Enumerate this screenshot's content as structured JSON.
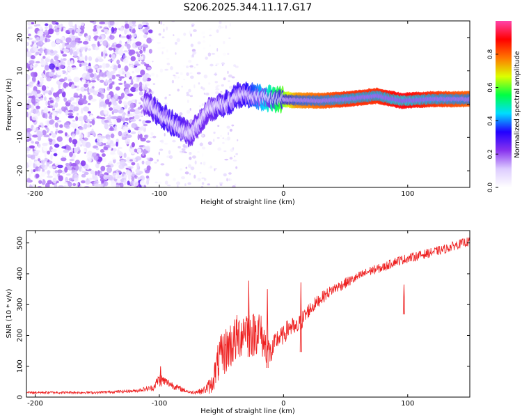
{
  "figure": {
    "title": "S206.2025.344.11.17.G17"
  },
  "chart_data": [
    {
      "type": "heatmap",
      "title": "S206.2025.344.11.17.G17",
      "xlabel": "Height of straight line (km)",
      "ylabel": "Frequency (Hz)",
      "xlim": [
        -207,
        150
      ],
      "ylim": [
        -25,
        25
      ],
      "xticks": [
        -200,
        -100,
        0,
        100
      ],
      "yticks": [
        -20,
        -10,
        0,
        10,
        20
      ],
      "xtick_labels": [
        "-200",
        "-100",
        "0",
        "100"
      ],
      "ytick_labels": [
        "-20",
        "-10",
        "0",
        "10",
        "20"
      ],
      "colorbar": {
        "label": "Normalized spectral amplitude",
        "range": [
          0,
          1
        ],
        "ticks": [
          0.0,
          0.2,
          0.4,
          0.6,
          0.8
        ],
        "tick_labels": [
          "0.0",
          "0.2",
          "0.4",
          "0.6",
          "0.8"
        ],
        "colors": [
          "#ffffff",
          "#ddccff",
          "#8833ee",
          "#2200ff",
          "#00ddff",
          "#00ff44",
          "#ddff00",
          "#ff7700",
          "#ff0000",
          "#ff44aa"
        ]
      },
      "ridge": [
        {
          "x": -110,
          "y": 0.5,
          "amp": 0.25
        },
        {
          "x": -100,
          "y": -3,
          "amp": 0.3
        },
        {
          "x": -88,
          "y": -6,
          "amp": 0.3
        },
        {
          "x": -75,
          "y": -9,
          "amp": 0.25
        },
        {
          "x": -60,
          "y": -1.5,
          "amp": 0.25
        },
        {
          "x": -45,
          "y": 0.5,
          "amp": 0.3
        },
        {
          "x": -35,
          "y": 3,
          "amp": 0.3
        },
        {
          "x": -20,
          "y": 2,
          "amp": 0.4
        },
        {
          "x": -5,
          "y": 1.5,
          "amp": 0.55
        },
        {
          "x": 10,
          "y": 1.2,
          "amp": 0.75
        },
        {
          "x": 30,
          "y": 1.0,
          "amp": 0.8
        },
        {
          "x": 50,
          "y": 1.5,
          "amp": 0.85
        },
        {
          "x": 75,
          "y": 2.5,
          "amp": 0.85
        },
        {
          "x": 95,
          "y": 1.0,
          "amp": 0.9
        },
        {
          "x": 120,
          "y": 1.5,
          "amp": 0.85
        },
        {
          "x": 150,
          "y": 1.5,
          "amp": 0.8
        }
      ]
    },
    {
      "type": "line",
      "xlabel": "Height of straight line (km)",
      "ylabel": "SNR (10 * v/v)",
      "xlim": [
        -207,
        150
      ],
      "ylim": [
        0,
        540
      ],
      "xticks": [
        -200,
        -100,
        0,
        100
      ],
      "yticks": [
        0,
        100,
        200,
        300,
        400,
        500
      ],
      "xtick_labels": [
        "-200",
        "-100",
        "0",
        "100"
      ],
      "ytick_labels": [
        "0",
        "100",
        "200",
        "300",
        "400",
        "500"
      ],
      "series": [
        {
          "name": "SNR",
          "color": "#ee2020",
          "x": [
            -207,
            -180,
            -150,
            -120,
            -105,
            -100,
            -95,
            -85,
            -75,
            -65,
            -58,
            -52,
            -45,
            -40,
            -35,
            -30,
            -25,
            -20,
            -15,
            -10,
            -5,
            0,
            5,
            10,
            15,
            20,
            25,
            30,
            40,
            50,
            60,
            70,
            80,
            90,
            100,
            110,
            120,
            130,
            140,
            150
          ],
          "y": [
            15,
            15,
            15,
            20,
            30,
            60,
            50,
            30,
            15,
            20,
            40,
            120,
            160,
            180,
            200,
            230,
            200,
            220,
            170,
            140,
            190,
            200,
            230,
            220,
            250,
            280,
            300,
            320,
            350,
            370,
            390,
            410,
            420,
            440,
            450,
            460,
            470,
            480,
            495,
            505
          ],
          "spread": [
            8,
            8,
            8,
            10,
            20,
            40,
            30,
            20,
            10,
            20,
            60,
            140,
            160,
            160,
            160,
            140,
            150,
            150,
            120,
            80,
            70,
            60,
            70,
            60,
            60,
            50,
            45,
            40,
            35,
            35,
            30,
            30,
            30,
            30,
            30,
            30,
            30,
            30,
            30,
            30
          ],
          "spikes": [
            {
              "x": -99,
              "y": 100
            },
            {
              "x": -28,
              "y": 378
            },
            {
              "x": -13,
              "y": 350
            },
            {
              "x": 14,
              "y": 372
            },
            {
              "x": 97,
              "y": 365
            }
          ]
        }
      ]
    }
  ]
}
